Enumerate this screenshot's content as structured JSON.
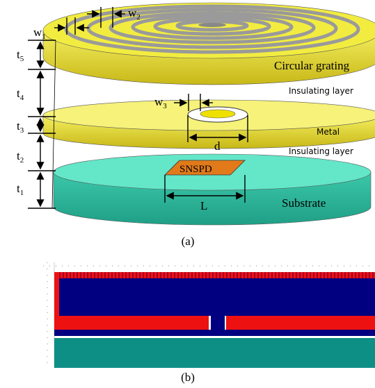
{
  "figure_a": {
    "labels": {
      "w1": {
        "base": "w",
        "sub": "1"
      },
      "w2": {
        "base": "w",
        "sub": "2"
      },
      "w3": {
        "base": "w",
        "sub": "3"
      },
      "t1": {
        "base": "t",
        "sub": "1"
      },
      "t2": {
        "base": "t",
        "sub": "2"
      },
      "t3": {
        "base": "t",
        "sub": "3"
      },
      "t4": {
        "base": "t",
        "sub": "4"
      },
      "t5": {
        "base": "t",
        "sub": "5"
      },
      "d": "d",
      "L": "L",
      "snspd": "SNSPD"
    },
    "layers": {
      "grating": "Circular grating",
      "insulating_top": "Insulating layer",
      "metal": "Metal",
      "insulating_bottom": "Insulating layer",
      "substrate": "Substrate"
    },
    "caption": "(a)"
  },
  "figure_b": {
    "caption": "(b)"
  }
}
